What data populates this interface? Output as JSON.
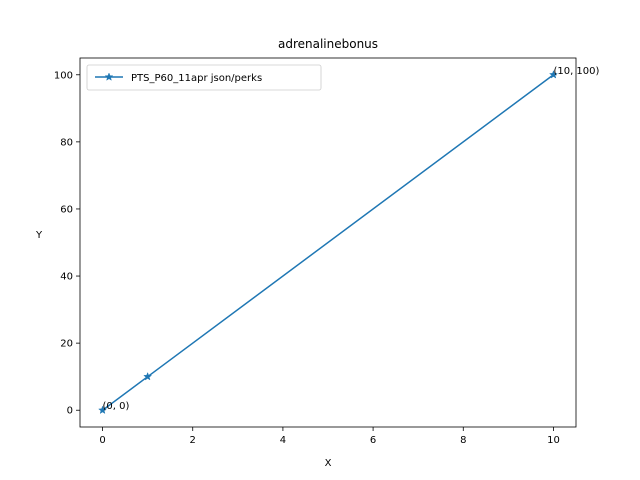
{
  "chart_data": {
    "type": "line",
    "title": "adrenalinebonus",
    "xlabel": "X",
    "ylabel": "Y",
    "xlim": [
      -0.5,
      10.5
    ],
    "ylim": [
      -5,
      105
    ],
    "xticks": [
      0,
      2,
      4,
      6,
      8,
      10
    ],
    "yticks": [
      0,
      20,
      40,
      60,
      80,
      100
    ],
    "grid": false,
    "legend_placement": "top-left",
    "series": [
      {
        "name": "PTS_P60_11apr json/perks",
        "color": "#1f77b4",
        "marker": "star",
        "x": [
          0,
          1,
          10
        ],
        "y": [
          0,
          10,
          100
        ]
      }
    ],
    "annotations": [
      {
        "text": "(0, 0)",
        "x": 0,
        "y": 0
      },
      {
        "text": "(10, 100)",
        "x": 10,
        "y": 100
      }
    ]
  }
}
